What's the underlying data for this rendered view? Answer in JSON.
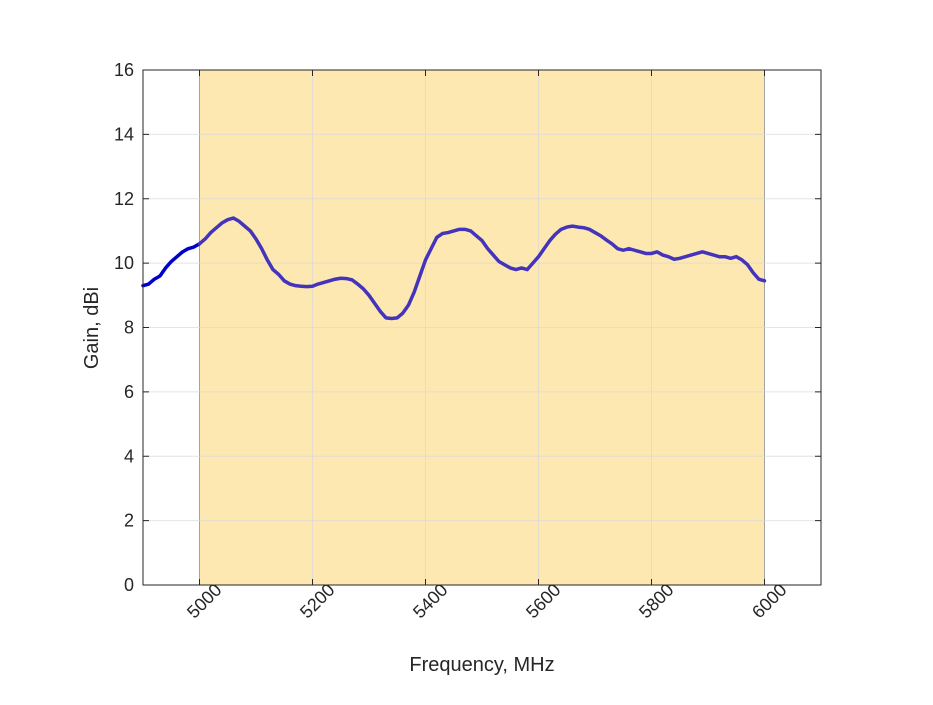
{
  "chart_data": {
    "type": "line",
    "title": "",
    "xlabel": "Frequency, MHz",
    "ylabel": "Gain, dBi",
    "xlim": [
      4900,
      6100
    ],
    "ylim": [
      0,
      16
    ],
    "xticks": [
      5000,
      5200,
      5400,
      5600,
      5800,
      6000
    ],
    "yticks": [
      0,
      2,
      4,
      6,
      8,
      10,
      12,
      14,
      16
    ],
    "xtick_labels": [
      "5000",
      "5200",
      "5400",
      "5600",
      "5800",
      "6000"
    ],
    "ytick_labels": [
      "0",
      "2",
      "4",
      "6",
      "8",
      "10",
      "12",
      "14",
      "16"
    ],
    "grid": true,
    "band": {
      "x_start": 5000,
      "x_end": 6000
    },
    "series": [
      {
        "x": [
          4900,
          4910,
          4920,
          4930,
          4940,
          4950,
          4960,
          4970,
          4980,
          4990,
          5000
        ],
        "y": [
          9.3,
          9.35,
          9.5,
          9.6,
          9.85,
          10.05,
          10.2,
          10.35,
          10.45,
          10.5,
          10.6
        ],
        "color": "#0000cc"
      },
      {
        "x": [
          5000,
          5010,
          5020,
          5030,
          5040,
          5050,
          5060,
          5070,
          5080,
          5090,
          5100,
          5110,
          5120,
          5130,
          5140,
          5150,
          5160,
          5170,
          5180,
          5190,
          5200,
          5210,
          5220,
          5230,
          5240,
          5250,
          5260,
          5270,
          5280,
          5290,
          5300,
          5310,
          5320,
          5330,
          5340,
          5350,
          5360,
          5370,
          5380,
          5390,
          5400,
          5410,
          5420,
          5430,
          5440,
          5450,
          5460,
          5470,
          5480,
          5490,
          5500,
          5510,
          5520,
          5530,
          5540,
          5550,
          5560,
          5570,
          5580,
          5590,
          5600,
          5610,
          5620,
          5630,
          5640,
          5650,
          5660,
          5670,
          5680,
          5690,
          5700,
          5710,
          5720,
          5730,
          5740,
          5750,
          5760,
          5770,
          5780,
          5790,
          5800,
          5810,
          5820,
          5830,
          5840,
          5850,
          5860,
          5870,
          5880,
          5890,
          5900,
          5910,
          5920,
          5930,
          5940,
          5950,
          5960,
          5970,
          5980,
          5990,
          6000
        ],
        "y": [
          10.6,
          10.75,
          10.95,
          11.1,
          11.25,
          11.35,
          11.4,
          11.3,
          11.15,
          11.0,
          10.75,
          10.45,
          10.1,
          9.8,
          9.65,
          9.45,
          9.35,
          9.3,
          9.28,
          9.27,
          9.28,
          9.35,
          9.4,
          9.45,
          9.5,
          9.53,
          9.52,
          9.48,
          9.35,
          9.2,
          9.0,
          8.75,
          8.5,
          8.3,
          8.28,
          8.3,
          8.45,
          8.7,
          9.1,
          9.6,
          10.1,
          10.45,
          10.8,
          10.92,
          10.95,
          11.0,
          11.05,
          11.05,
          11.0,
          10.85,
          10.7,
          10.45,
          10.25,
          10.05,
          9.95,
          9.85,
          9.8,
          9.85,
          9.8,
          10.0,
          10.2,
          10.45,
          10.7,
          10.9,
          11.05,
          11.12,
          11.15,
          11.12,
          11.1,
          11.05,
          10.95,
          10.85,
          10.72,
          10.6,
          10.45,
          10.4,
          10.45,
          10.4,
          10.35,
          10.3,
          10.3,
          10.35,
          10.25,
          10.2,
          10.12,
          10.15,
          10.2,
          10.25,
          10.3,
          10.35,
          10.3,
          10.25,
          10.2,
          10.2,
          10.15,
          10.2,
          10.1,
          9.95,
          9.7,
          9.5,
          9.45
        ],
        "color": "#4433bb"
      }
    ]
  },
  "colors": {
    "band_fill": "#fde8b2",
    "axes_line": "#262626",
    "grid": "#d9d9d9"
  }
}
